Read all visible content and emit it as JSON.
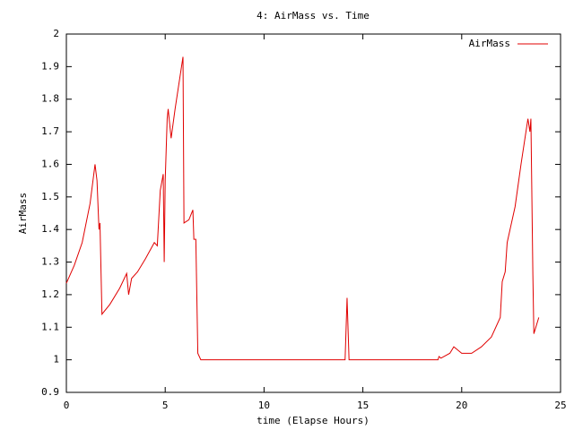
{
  "chart_data": {
    "type": "line",
    "title": "4: AirMass vs. Time",
    "xlabel": "time (Elapse Hours)",
    "ylabel": "AirMass",
    "x": [
      0,
      0.4,
      0.8,
      1.2,
      1.45,
      1.55,
      1.65,
      1.7,
      1.8,
      2.2,
      2.7,
      3.05,
      3.15,
      3.3,
      3.6,
      4.0,
      4.45,
      4.6,
      4.75,
      4.9,
      4.95,
      5.0,
      5.1,
      5.15,
      5.3,
      5.5,
      5.9,
      5.95,
      6.2,
      6.4,
      6.45,
      6.55,
      6.65,
      6.8,
      14.1,
      14.2,
      14.3,
      18.8,
      18.85,
      18.95,
      19.4,
      19.6,
      20.0,
      20.5,
      21.0,
      21.5,
      21.95,
      22.05,
      22.2,
      22.3,
      22.7,
      23.0,
      23.35,
      23.45,
      23.5,
      23.6,
      23.65,
      23.9
    ],
    "series": [
      {
        "name": "AirMass",
        "color": "#e00000",
        "values": [
          1.235,
          1.29,
          1.36,
          1.48,
          1.6,
          1.55,
          1.4,
          1.42,
          1.14,
          1.17,
          1.22,
          1.265,
          1.2,
          1.25,
          1.27,
          1.31,
          1.36,
          1.35,
          1.52,
          1.57,
          1.3,
          1.55,
          1.74,
          1.77,
          1.68,
          1.77,
          1.93,
          1.42,
          1.43,
          1.46,
          1.37,
          1.37,
          1.02,
          1.0,
          1.0,
          1.19,
          1.0,
          1.0,
          1.01,
          1.005,
          1.02,
          1.04,
          1.02,
          1.02,
          1.04,
          1.07,
          1.13,
          1.24,
          1.27,
          1.36,
          1.47,
          1.6,
          1.74,
          1.7,
          1.74,
          1.26,
          1.08,
          1.13
        ]
      }
    ],
    "xlim": [
      0,
      25
    ],
    "xticks": [
      0,
      5,
      10,
      15,
      20,
      25
    ],
    "ylim": [
      0.9,
      2
    ],
    "yticks": [
      0.9,
      1,
      1.1,
      1.2,
      1.3,
      1.4,
      1.5,
      1.6,
      1.7,
      1.8,
      1.9,
      2
    ],
    "legend": "top-right"
  }
}
